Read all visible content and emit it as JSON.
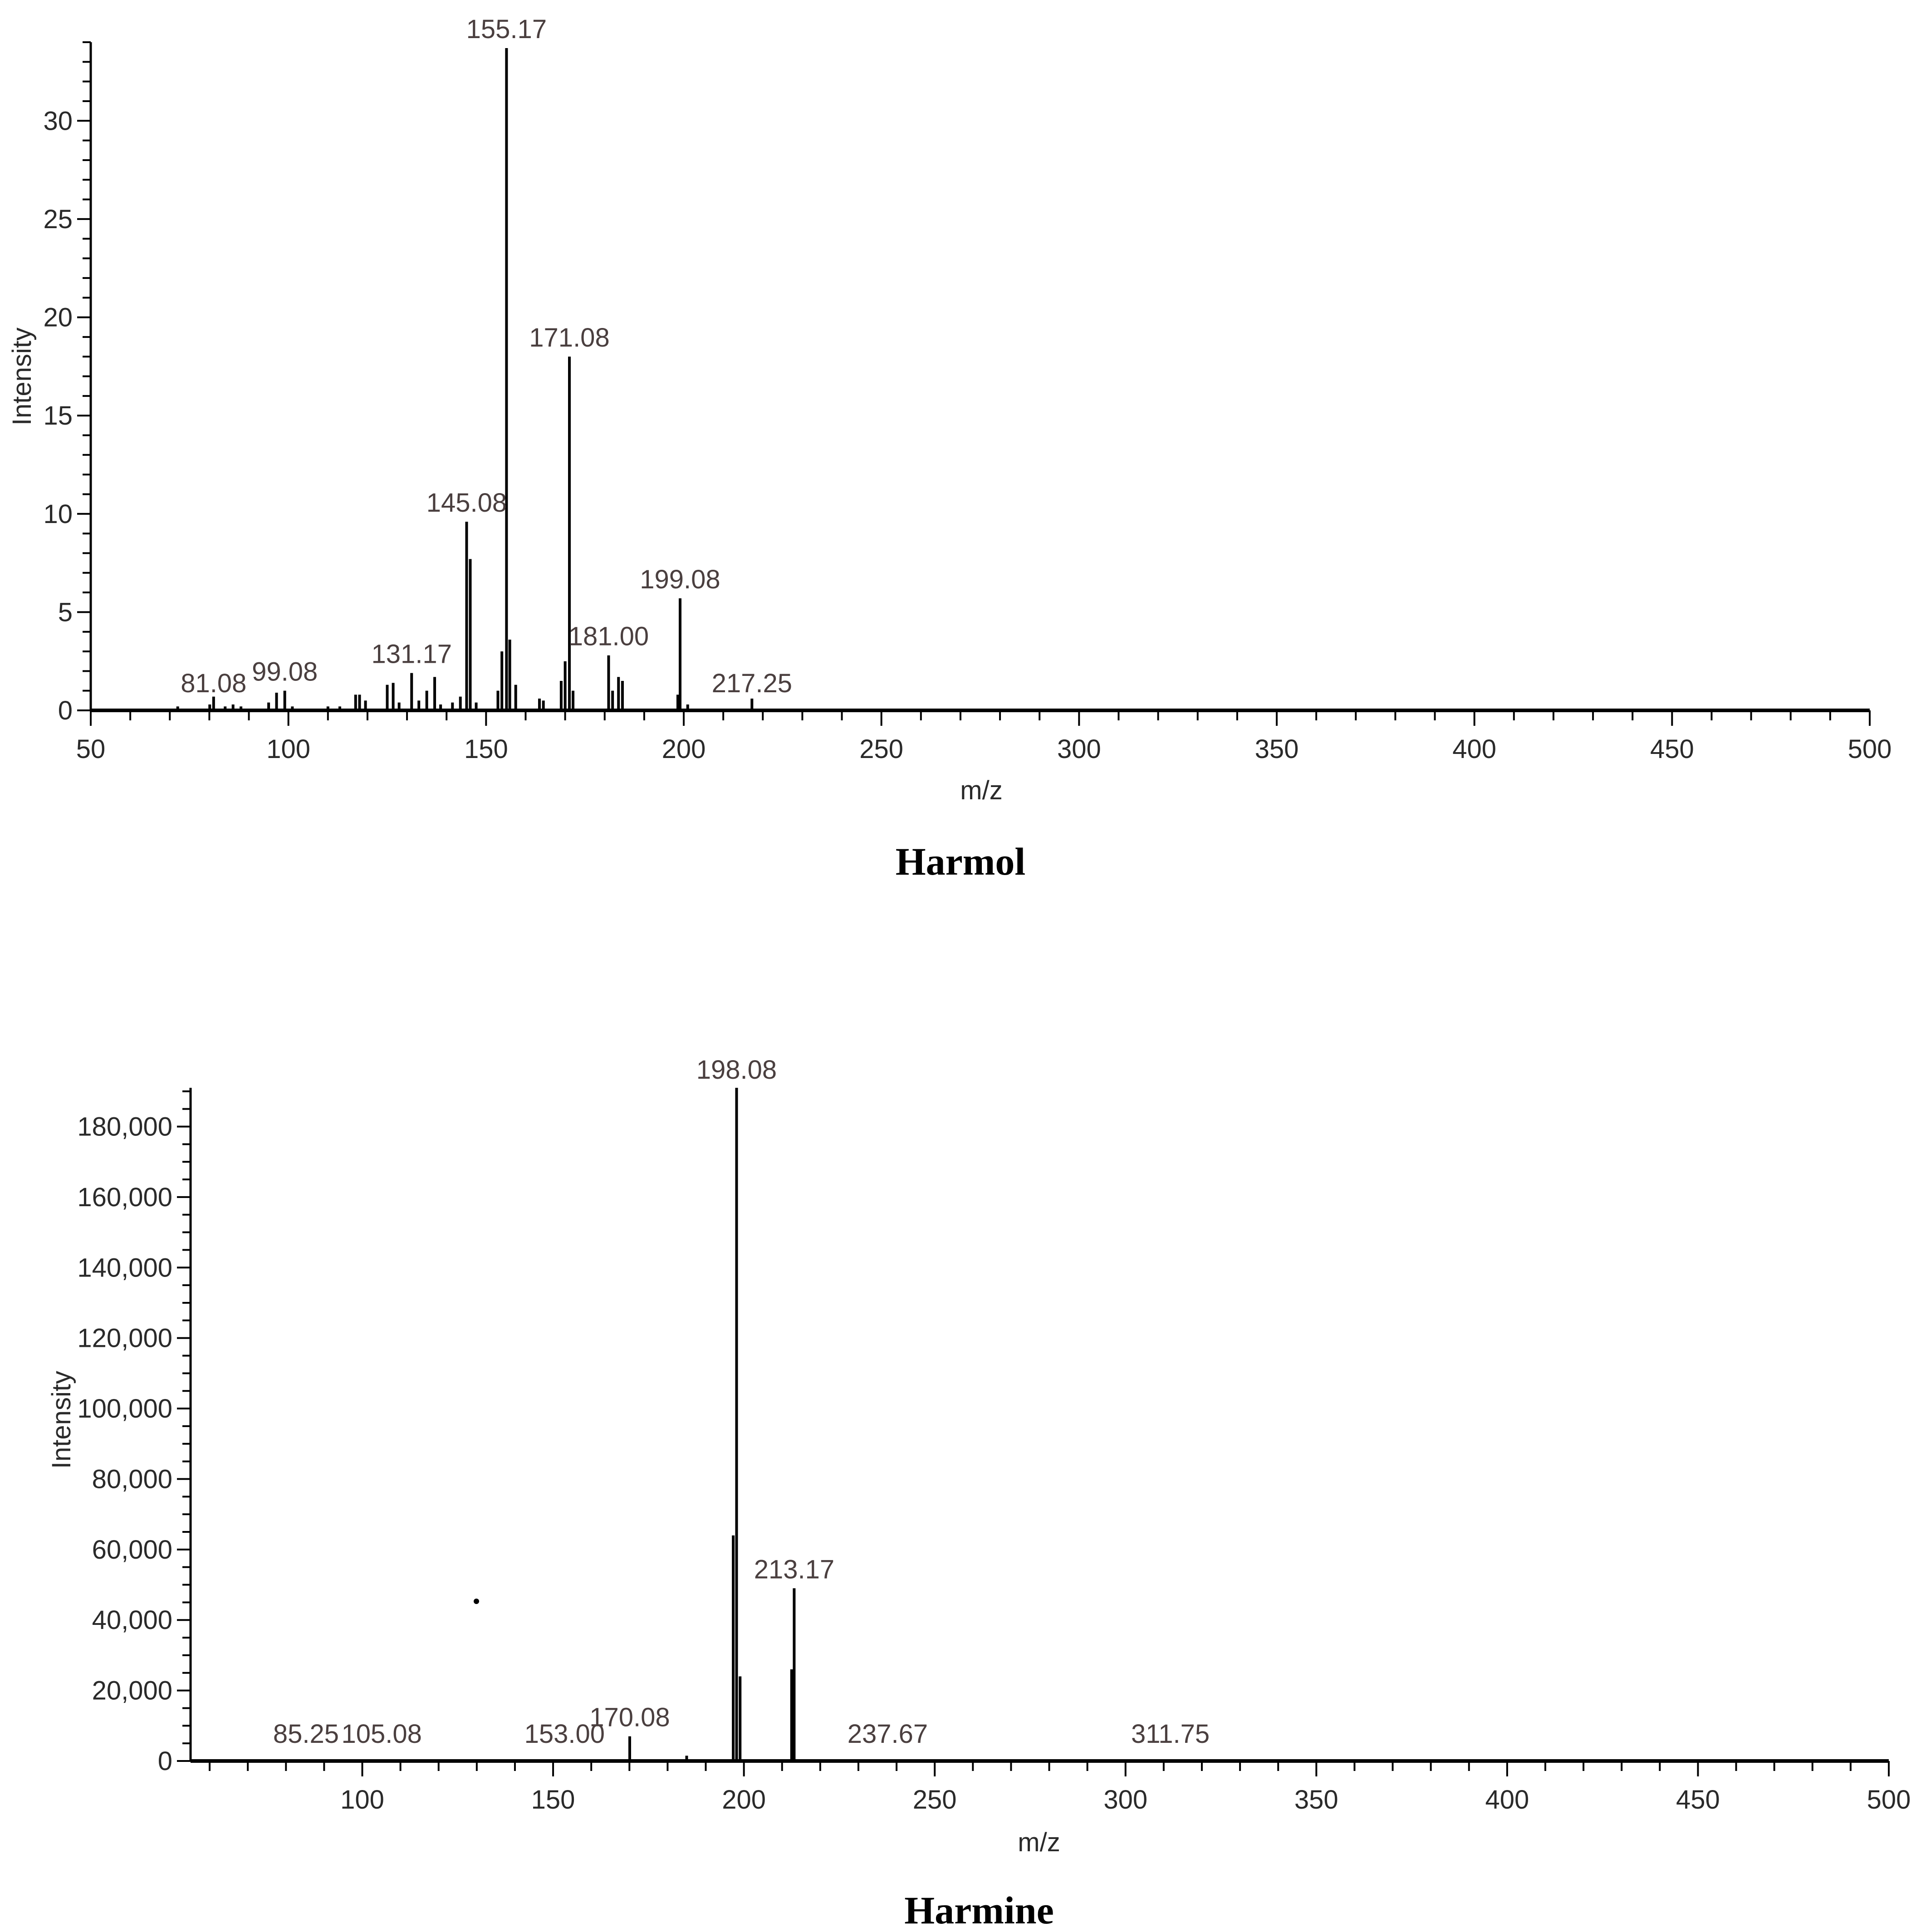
{
  "chart_data": [
    {
      "type": "bar",
      "title": "Harmol",
      "xlabel": "m/z",
      "ylabel": "Intensity",
      "xlim": [
        50,
        500
      ],
      "ylim": [
        0,
        34
      ],
      "x_ticks": [
        50,
        100,
        150,
        200,
        250,
        300,
        350,
        400,
        450,
        500
      ],
      "x_tick_labels": [
        "50",
        "100",
        "150",
        "200",
        "250",
        "300",
        "350",
        "400",
        "450",
        "500"
      ],
      "y_ticks": [
        0,
        5,
        10,
        15,
        20,
        25,
        30
      ],
      "y_tick_labels": [
        "0",
        "5",
        "10",
        "15",
        "20",
        "25",
        "30"
      ],
      "peaks": [
        {
          "mz": 72.0,
          "intensity": 0.2
        },
        {
          "mz": 80.1,
          "intensity": 0.3
        },
        {
          "mz": 81.08,
          "intensity": 0.7,
          "label": "81.08"
        },
        {
          "mz": 84.0,
          "intensity": 0.2
        },
        {
          "mz": 86.0,
          "intensity": 0.3
        },
        {
          "mz": 88.0,
          "intensity": 0.2
        },
        {
          "mz": 95.0,
          "intensity": 0.4
        },
        {
          "mz": 97.0,
          "intensity": 0.9
        },
        {
          "mz": 99.08,
          "intensity": 1.0,
          "label": "99.08"
        },
        {
          "mz": 101.0,
          "intensity": 0.2
        },
        {
          "mz": 110.0,
          "intensity": 0.2
        },
        {
          "mz": 113.0,
          "intensity": 0.2
        },
        {
          "mz": 117.0,
          "intensity": 0.8
        },
        {
          "mz": 118.0,
          "intensity": 0.8
        },
        {
          "mz": 119.5,
          "intensity": 0.5
        },
        {
          "mz": 125.0,
          "intensity": 1.3
        },
        {
          "mz": 126.5,
          "intensity": 1.4
        },
        {
          "mz": 128.0,
          "intensity": 0.4
        },
        {
          "mz": 131.17,
          "intensity": 1.9,
          "label": "131.17"
        },
        {
          "mz": 133.0,
          "intensity": 0.5
        },
        {
          "mz": 135.0,
          "intensity": 1.0
        },
        {
          "mz": 137.0,
          "intensity": 1.7
        },
        {
          "mz": 138.5,
          "intensity": 0.3
        },
        {
          "mz": 141.5,
          "intensity": 0.4
        },
        {
          "mz": 143.5,
          "intensity": 0.7
        },
        {
          "mz": 145.08,
          "intensity": 9.6,
          "label": "145.08"
        },
        {
          "mz": 146.0,
          "intensity": 7.7
        },
        {
          "mz": 147.5,
          "intensity": 0.4
        },
        {
          "mz": 153.0,
          "intensity": 1.0
        },
        {
          "mz": 154.0,
          "intensity": 3.0
        },
        {
          "mz": 155.17,
          "intensity": 33.7,
          "label": "155.17"
        },
        {
          "mz": 156.0,
          "intensity": 3.6
        },
        {
          "mz": 157.5,
          "intensity": 1.3
        },
        {
          "mz": 163.5,
          "intensity": 0.6
        },
        {
          "mz": 164.5,
          "intensity": 0.5
        },
        {
          "mz": 169.0,
          "intensity": 1.5
        },
        {
          "mz": 170.0,
          "intensity": 2.5
        },
        {
          "mz": 171.08,
          "intensity": 18.0,
          "label": "171.08"
        },
        {
          "mz": 172.0,
          "intensity": 1.0
        },
        {
          "mz": 181.0,
          "intensity": 2.8,
          "label": "181.00"
        },
        {
          "mz": 182.0,
          "intensity": 1.0
        },
        {
          "mz": 183.5,
          "intensity": 1.7
        },
        {
          "mz": 184.5,
          "intensity": 1.5
        },
        {
          "mz": 198.5,
          "intensity": 0.8
        },
        {
          "mz": 199.08,
          "intensity": 5.7,
          "label": "199.08"
        },
        {
          "mz": 201.0,
          "intensity": 0.3
        },
        {
          "mz": 217.25,
          "intensity": 0.6,
          "label": "217.25"
        }
      ],
      "labels": [
        {
          "text": "81.08",
          "mz": 81.08
        },
        {
          "text": "99.08",
          "mz": 99.08
        },
        {
          "text": "131.17",
          "mz": 131.17
        },
        {
          "text": "145.08",
          "mz": 145.08
        },
        {
          "text": "155.17",
          "mz": 155.17
        },
        {
          "text": "171.08",
          "mz": 171.08
        },
        {
          "text": "181.00",
          "mz": 181.0
        },
        {
          "text": "199.08",
          "mz": 199.08
        },
        {
          "text": "217.25",
          "mz": 217.25
        }
      ]
    },
    {
      "type": "bar",
      "title": "Harmine",
      "xlabel": "m/z",
      "ylabel": "Intensity",
      "xlim": [
        55,
        500
      ],
      "ylim": [
        0,
        191000
      ],
      "x_ticks": [
        100,
        150,
        200,
        250,
        300,
        350,
        400,
        450,
        500
      ],
      "x_tick_labels": [
        "100",
        "150",
        "200",
        "250",
        "300",
        "350",
        "400",
        "450",
        "500"
      ],
      "y_ticks": [
        0,
        20000,
        40000,
        60000,
        80000,
        100000,
        120000,
        140000,
        160000,
        180000
      ],
      "y_tick_labels": [
        "0",
        "20,000",
        "40,000",
        "60,000",
        "80,000",
        "100,000",
        "120,000",
        "140,000",
        "160,000",
        "180,000"
      ],
      "peaks": [
        {
          "mz": 85.25,
          "intensity": 400
        },
        {
          "mz": 105.08,
          "intensity": 300
        },
        {
          "mz": 153.0,
          "intensity": 400
        },
        {
          "mz": 170.08,
          "intensity": 7000
        },
        {
          "mz": 185.0,
          "intensity": 1500
        },
        {
          "mz": 197.2,
          "intensity": 64000
        },
        {
          "mz": 198.08,
          "intensity": 191000
        },
        {
          "mz": 199.0,
          "intensity": 24000
        },
        {
          "mz": 212.5,
          "intensity": 26000
        },
        {
          "mz": 213.17,
          "intensity": 49000
        },
        {
          "mz": 237.67,
          "intensity": 300
        },
        {
          "mz": 311.75,
          "intensity": 300
        }
      ],
      "labels": [
        {
          "text": "85.25",
          "mz": 85.25
        },
        {
          "text": "105.08",
          "mz": 105.08
        },
        {
          "text": "153.00",
          "mz": 153.0
        },
        {
          "text": "170.08",
          "mz": 170.08
        },
        {
          "text": "198.08",
          "mz": 198.08
        },
        {
          "text": "213.17",
          "mz": 213.17
        },
        {
          "text": "237.67",
          "mz": 237.67
        },
        {
          "text": "311.75",
          "mz": 311.75
        }
      ]
    }
  ]
}
